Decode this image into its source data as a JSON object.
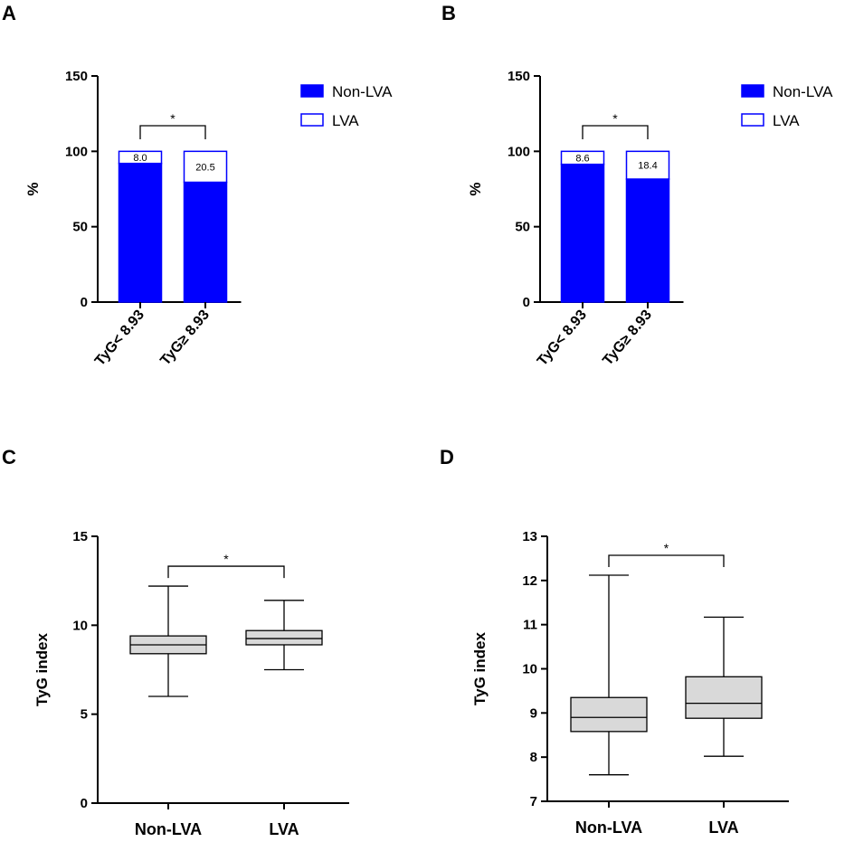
{
  "chart_data": [
    {
      "panel": "A",
      "type": "bar",
      "stacked": true,
      "categories": [
        "TyG< 8.93",
        "TyG≥ 8.93"
      ],
      "series": [
        {
          "name": "Non-LVA",
          "values": [
            92.0,
            79.5
          ],
          "color": "#0000ff"
        },
        {
          "name": "LVA",
          "values": [
            8.0,
            20.5
          ],
          "color": "#ffffff"
        }
      ],
      "data_labels": [
        "8.0",
        "20.5"
      ],
      "ylabel": "%",
      "ylim": [
        0,
        150
      ],
      "yticks": [
        "0",
        "50",
        "100",
        "150"
      ],
      "significance": "*",
      "legend": "right"
    },
    {
      "panel": "B",
      "type": "bar",
      "stacked": true,
      "categories": [
        "TyG< 8.93",
        "TyG≥ 8.93"
      ],
      "series": [
        {
          "name": "Non-LVA",
          "values": [
            91.4,
            81.6
          ],
          "color": "#0000ff"
        },
        {
          "name": "LVA",
          "values": [
            8.6,
            18.4
          ],
          "color": "#ffffff"
        }
      ],
      "data_labels": [
        "8.6",
        "18.4"
      ],
      "ylabel": "%",
      "ylim": [
        0,
        150
      ],
      "yticks": [
        "0",
        "50",
        "100",
        "150"
      ],
      "significance": "*",
      "legend": "right"
    },
    {
      "panel": "C",
      "type": "box",
      "categories": [
        "Non-LVA",
        "LVA"
      ],
      "boxes": [
        {
          "min": 6.0,
          "q1": 8.4,
          "median": 8.9,
          "q3": 9.4,
          "max": 12.2
        },
        {
          "min": 7.5,
          "q1": 8.9,
          "median": 9.25,
          "q3": 9.7,
          "max": 11.4
        }
      ],
      "ylabel": "TyG index",
      "ylim": [
        0,
        15
      ],
      "yticks": [
        "0",
        "5",
        "10",
        "15"
      ],
      "significance": "*"
    },
    {
      "panel": "D",
      "type": "box",
      "categories": [
        "Non-LVA",
        "LVA"
      ],
      "boxes": [
        {
          "min": 7.6,
          "q1": 8.58,
          "median": 8.9,
          "q3": 9.35,
          "max": 12.12
        },
        {
          "min": 8.02,
          "q1": 8.88,
          "median": 9.22,
          "q3": 9.82,
          "max": 11.17
        }
      ],
      "ylabel": "TyG index",
      "ylim": [
        7,
        13
      ],
      "yticks": [
        "7",
        "8",
        "9",
        "10",
        "11",
        "12",
        "13"
      ],
      "significance": "*"
    }
  ]
}
